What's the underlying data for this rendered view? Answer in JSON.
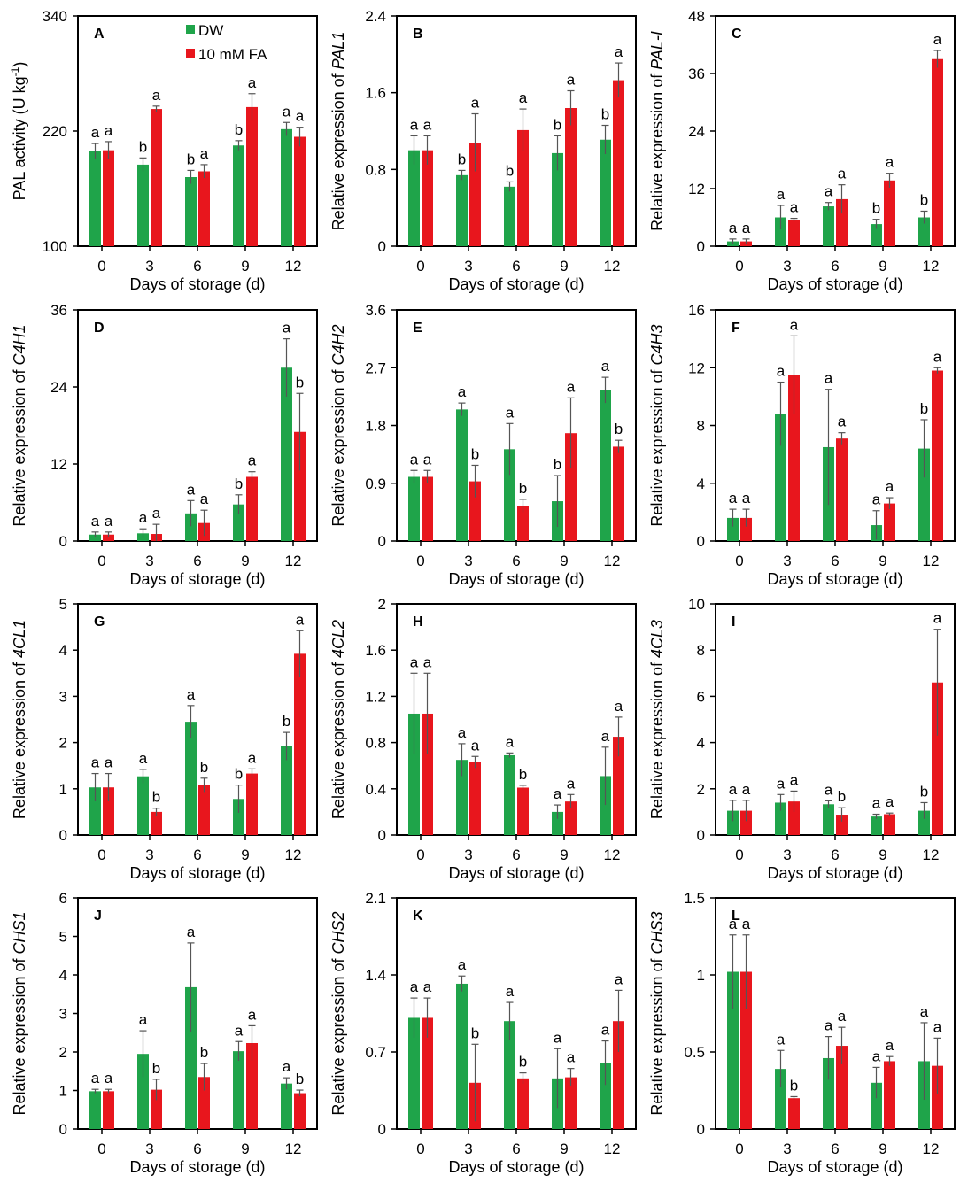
{
  "chart_data": [
    {
      "panel": "A",
      "type": "bar",
      "ylabel_plain": "PAL activity (U kg",
      "ylabel_sup": "-1",
      "ylabel_end": ")",
      "ylim": [
        100,
        340
      ],
      "yticks": [
        "100",
        "220",
        "340"
      ],
      "categories": [
        "0",
        "3",
        "6",
        "9",
        "12"
      ],
      "xlabel": "Days of storage (d)",
      "legend": [
        "DW",
        "10 mM FA"
      ],
      "series": [
        {
          "name": "DW",
          "values": [
            199,
            185,
            172,
            205,
            222
          ],
          "errors": [
            8,
            7,
            7,
            5,
            7
          ],
          "letters": [
            "a",
            "b",
            "b",
            "b",
            "a"
          ]
        },
        {
          "name": "10 mM FA",
          "values": [
            200,
            243,
            178,
            245,
            214
          ],
          "errors": [
            9,
            3,
            7,
            14,
            10
          ],
          "letters": [
            "a",
            "a",
            "a",
            "a",
            "a"
          ]
        }
      ]
    },
    {
      "panel": "B",
      "type": "bar",
      "ylabel_plain": "Relative expression of ",
      "ylabel_gene": "PAL1",
      "ylim": [
        0,
        2.4
      ],
      "yticks": [
        "0",
        "0.8",
        "1.6",
        "2.4"
      ],
      "categories": [
        "0",
        "3",
        "6",
        "9",
        "12"
      ],
      "xlabel": "Days of storage (d)",
      "series": [
        {
          "name": "DW",
          "values": [
            1.0,
            0.74,
            0.62,
            0.97,
            1.11
          ],
          "errors": [
            0.15,
            0.05,
            0.05,
            0.18,
            0.15
          ],
          "letters": [
            "a",
            "b",
            "b",
            "b",
            "b"
          ]
        },
        {
          "name": "10 mM FA",
          "values": [
            1.0,
            1.08,
            1.21,
            1.44,
            1.73
          ],
          "errors": [
            0.15,
            0.3,
            0.22,
            0.18,
            0.18
          ],
          "letters": [
            "a",
            "a",
            "a",
            "a",
            "a"
          ]
        }
      ]
    },
    {
      "panel": "C",
      "type": "bar",
      "ylabel_plain": "Relative expression of ",
      "ylabel_gene": "PAL-I",
      "ylim": [
        0,
        48
      ],
      "yticks": [
        "0",
        "12",
        "24",
        "36",
        "48"
      ],
      "categories": [
        "0",
        "3",
        "6",
        "9",
        "12"
      ],
      "xlabel": "Days of storage (d)",
      "series": [
        {
          "name": "DW",
          "values": [
            1.0,
            6.0,
            8.3,
            4.6,
            6.0
          ],
          "errors": [
            0.5,
            2.5,
            0.8,
            1.0,
            1.3
          ],
          "letters": [
            "a",
            "a",
            "a",
            "b",
            "b"
          ]
        },
        {
          "name": "10 mM FA",
          "values": [
            1.0,
            5.5,
            9.8,
            13.7,
            39.0
          ],
          "errors": [
            0.5,
            0.3,
            3.0,
            1.5,
            1.8
          ],
          "letters": [
            "a",
            "a",
            "a",
            "a",
            "a"
          ]
        }
      ]
    },
    {
      "panel": "D",
      "type": "bar",
      "ylabel_plain": "Relative expression of ",
      "ylabel_gene": "C4H1",
      "ylim": [
        0,
        36
      ],
      "yticks": [
        "0",
        "12",
        "24",
        "36"
      ],
      "categories": [
        "0",
        "3",
        "6",
        "9",
        "12"
      ],
      "xlabel": "Days of storage (d)",
      "series": [
        {
          "name": "DW",
          "values": [
            1.0,
            1.2,
            4.3,
            5.7,
            27.0
          ],
          "errors": [
            0.4,
            0.7,
            2.0,
            1.5,
            4.5
          ],
          "letters": [
            "a",
            "a",
            "a",
            "b",
            "a"
          ]
        },
        {
          "name": "10 mM FA",
          "values": [
            1.0,
            1.1,
            2.8,
            10.0,
            17.0
          ],
          "errors": [
            0.4,
            1.5,
            2.0,
            0.8,
            6.0
          ],
          "letters": [
            "a",
            "a",
            "a",
            "a",
            "b"
          ]
        }
      ]
    },
    {
      "panel": "E",
      "type": "bar",
      "ylabel_plain": "Relative expression of ",
      "ylabel_gene": "C4H2",
      "ylim": [
        0,
        3.6
      ],
      "yticks": [
        "0",
        "0.9",
        "1.8",
        "2.7",
        "3.6"
      ],
      "categories": [
        "0",
        "3",
        "6",
        "9",
        "12"
      ],
      "xlabel": "Days of storage (d)",
      "series": [
        {
          "name": "DW",
          "values": [
            1.0,
            2.05,
            1.43,
            0.62,
            2.35
          ],
          "errors": [
            0.1,
            0.1,
            0.4,
            0.4,
            0.2
          ],
          "letters": [
            "a",
            "a",
            "a",
            "b",
            "a"
          ]
        },
        {
          "name": "10 mM FA",
          "values": [
            1.0,
            0.93,
            0.55,
            1.68,
            1.47
          ],
          "errors": [
            0.1,
            0.25,
            0.1,
            0.55,
            0.1
          ],
          "letters": [
            "a",
            "b",
            "b",
            "a",
            "b"
          ]
        }
      ]
    },
    {
      "panel": "F",
      "type": "bar",
      "ylabel_plain": "Relative expression of ",
      "ylabel_gene": "C4H3",
      "ylim": [
        0,
        16
      ],
      "yticks": [
        "0",
        "4",
        "8",
        "12",
        "16"
      ],
      "categories": [
        "0",
        "3",
        "6",
        "9",
        "12"
      ],
      "xlabel": "Days of storage (d)",
      "series": [
        {
          "name": "DW",
          "values": [
            1.6,
            8.8,
            6.5,
            1.1,
            6.4
          ],
          "errors": [
            0.6,
            2.2,
            4.0,
            1.0,
            2.0
          ],
          "letters": [
            "a",
            "a",
            "a",
            "a",
            "b"
          ]
        },
        {
          "name": "10 mM FA",
          "values": [
            1.6,
            11.5,
            7.1,
            2.6,
            11.8
          ],
          "errors": [
            0.6,
            2.7,
            0.4,
            0.4,
            0.2
          ],
          "letters": [
            "a",
            "a",
            "a",
            "a",
            "a"
          ]
        }
      ]
    },
    {
      "panel": "G",
      "type": "bar",
      "ylabel_plain": "Relative expression of ",
      "ylabel_gene": "4CL1",
      "ylim": [
        0,
        5
      ],
      "yticks": [
        "0",
        "1",
        "2",
        "3",
        "4",
        "5"
      ],
      "categories": [
        "0",
        "3",
        "6",
        "9",
        "12"
      ],
      "xlabel": "Days of storage (d)",
      "series": [
        {
          "name": "DW",
          "values": [
            1.03,
            1.27,
            2.45,
            0.78,
            1.92
          ],
          "errors": [
            0.3,
            0.15,
            0.35,
            0.3,
            0.3
          ],
          "letters": [
            "a",
            "a",
            "a",
            "b",
            "b"
          ]
        },
        {
          "name": "10 mM FA",
          "values": [
            1.03,
            0.5,
            1.08,
            1.33,
            3.92
          ],
          "errors": [
            0.3,
            0.08,
            0.15,
            0.1,
            0.5
          ],
          "letters": [
            "a",
            "b",
            "b",
            "a",
            "a"
          ]
        }
      ]
    },
    {
      "panel": "H",
      "type": "bar",
      "ylabel_plain": "Relative expression of ",
      "ylabel_gene": "4CL2",
      "ylim": [
        0,
        2
      ],
      "yticks": [
        "0",
        "0.4",
        "0.8",
        "1.2",
        "1.6",
        "2"
      ],
      "categories": [
        "0",
        "3",
        "6",
        "9",
        "12"
      ],
      "xlabel": "Days of storage (d)",
      "series": [
        {
          "name": "DW",
          "values": [
            1.05,
            0.65,
            0.69,
            0.2,
            0.51
          ],
          "errors": [
            0.35,
            0.14,
            0.02,
            0.06,
            0.25
          ],
          "letters": [
            "a",
            "a",
            "a",
            "a",
            "a"
          ]
        },
        {
          "name": "10 mM FA",
          "values": [
            1.05,
            0.63,
            0.41,
            0.29,
            0.85
          ],
          "errors": [
            0.35,
            0.05,
            0.02,
            0.06,
            0.17
          ],
          "letters": [
            "a",
            "a",
            "b",
            "a",
            "a"
          ]
        }
      ]
    },
    {
      "panel": "I",
      "type": "bar",
      "ylabel_plain": "Relative expression of ",
      "ylabel_gene": "4CL3",
      "ylim": [
        0,
        10
      ],
      "yticks": [
        "0",
        "2",
        "4",
        "6",
        "8",
        "10"
      ],
      "categories": [
        "0",
        "3",
        "6",
        "9",
        "12"
      ],
      "xlabel": "Days of storage (d)",
      "series": [
        {
          "name": "DW",
          "values": [
            1.05,
            1.4,
            1.33,
            0.8,
            1.05
          ],
          "errors": [
            0.45,
            0.35,
            0.15,
            0.1,
            0.35
          ],
          "letters": [
            "a",
            "a",
            "a",
            "a",
            "b"
          ]
        },
        {
          "name": "10 mM FA",
          "values": [
            1.05,
            1.45,
            0.88,
            0.9,
            6.6
          ],
          "errors": [
            0.45,
            0.45,
            0.3,
            0.05,
            2.3
          ],
          "letters": [
            "a",
            "a",
            "b",
            "a",
            "a"
          ]
        }
      ]
    },
    {
      "panel": "J",
      "type": "bar",
      "ylabel_plain": "Relative expression of ",
      "ylabel_gene": "CHS1",
      "ylim": [
        0,
        6
      ],
      "yticks": [
        "0",
        "1",
        "2",
        "3",
        "4",
        "5",
        "6"
      ],
      "categories": [
        "0",
        "3",
        "6",
        "9",
        "12"
      ],
      "xlabel": "Days of storage (d)",
      "series": [
        {
          "name": "DW",
          "values": [
            0.98,
            1.95,
            3.68,
            2.02,
            1.18
          ],
          "errors": [
            0.05,
            0.6,
            1.15,
            0.25,
            0.15
          ],
          "letters": [
            "a",
            "a",
            "a",
            "a",
            "a"
          ]
        },
        {
          "name": "10 mM FA",
          "values": [
            0.98,
            1.02,
            1.35,
            2.23,
            0.93
          ],
          "errors": [
            0.05,
            0.27,
            0.35,
            0.45,
            0.08
          ],
          "letters": [
            "a",
            "b",
            "b",
            "a",
            "b"
          ]
        }
      ]
    },
    {
      "panel": "K",
      "type": "bar",
      "ylabel_plain": "Relative expression of ",
      "ylabel_gene": "CHS2",
      "ylim": [
        0,
        2.1
      ],
      "yticks": [
        "0",
        "0.7",
        "1.4",
        "2.1"
      ],
      "categories": [
        "0",
        "3",
        "6",
        "9",
        "12"
      ],
      "xlabel": "Days of storage (d)",
      "series": [
        {
          "name": "DW",
          "values": [
            1.01,
            1.32,
            0.98,
            0.46,
            0.6
          ],
          "errors": [
            0.18,
            0.07,
            0.17,
            0.27,
            0.2
          ],
          "letters": [
            "a",
            "a",
            "a",
            "a",
            "a"
          ]
        },
        {
          "name": "10 mM FA",
          "values": [
            1.01,
            0.42,
            0.46,
            0.47,
            0.98
          ],
          "errors": [
            0.18,
            0.35,
            0.05,
            0.08,
            0.28
          ],
          "letters": [
            "a",
            "b",
            "b",
            "a",
            "a"
          ]
        }
      ]
    },
    {
      "panel": "L",
      "type": "bar",
      "ylabel_plain": "Relative expression of ",
      "ylabel_gene": "CHS3",
      "ylim": [
        0,
        1.5
      ],
      "yticks": [
        "0",
        "0.5",
        "1",
        "1.5"
      ],
      "categories": [
        "0",
        "3",
        "6",
        "9",
        "12"
      ],
      "xlabel": "Days of storage (d)",
      "series": [
        {
          "name": "DW",
          "values": [
            1.02,
            0.39,
            0.46,
            0.3,
            0.44
          ],
          "errors": [
            0.24,
            0.12,
            0.14,
            0.1,
            0.25
          ],
          "letters": [
            "a",
            "a",
            "a",
            "a",
            "a"
          ]
        },
        {
          "name": "10 mM FA",
          "values": [
            1.02,
            0.2,
            0.54,
            0.44,
            0.41
          ],
          "errors": [
            0.24,
            0.01,
            0.12,
            0.03,
            0.18
          ],
          "letters": [
            "a",
            "b",
            "a",
            "a",
            "a"
          ]
        }
      ]
    }
  ],
  "colors": {
    "dw": "#1fa44a",
    "fa": "#e8161d",
    "axis": "#000000",
    "error": "#555555"
  }
}
